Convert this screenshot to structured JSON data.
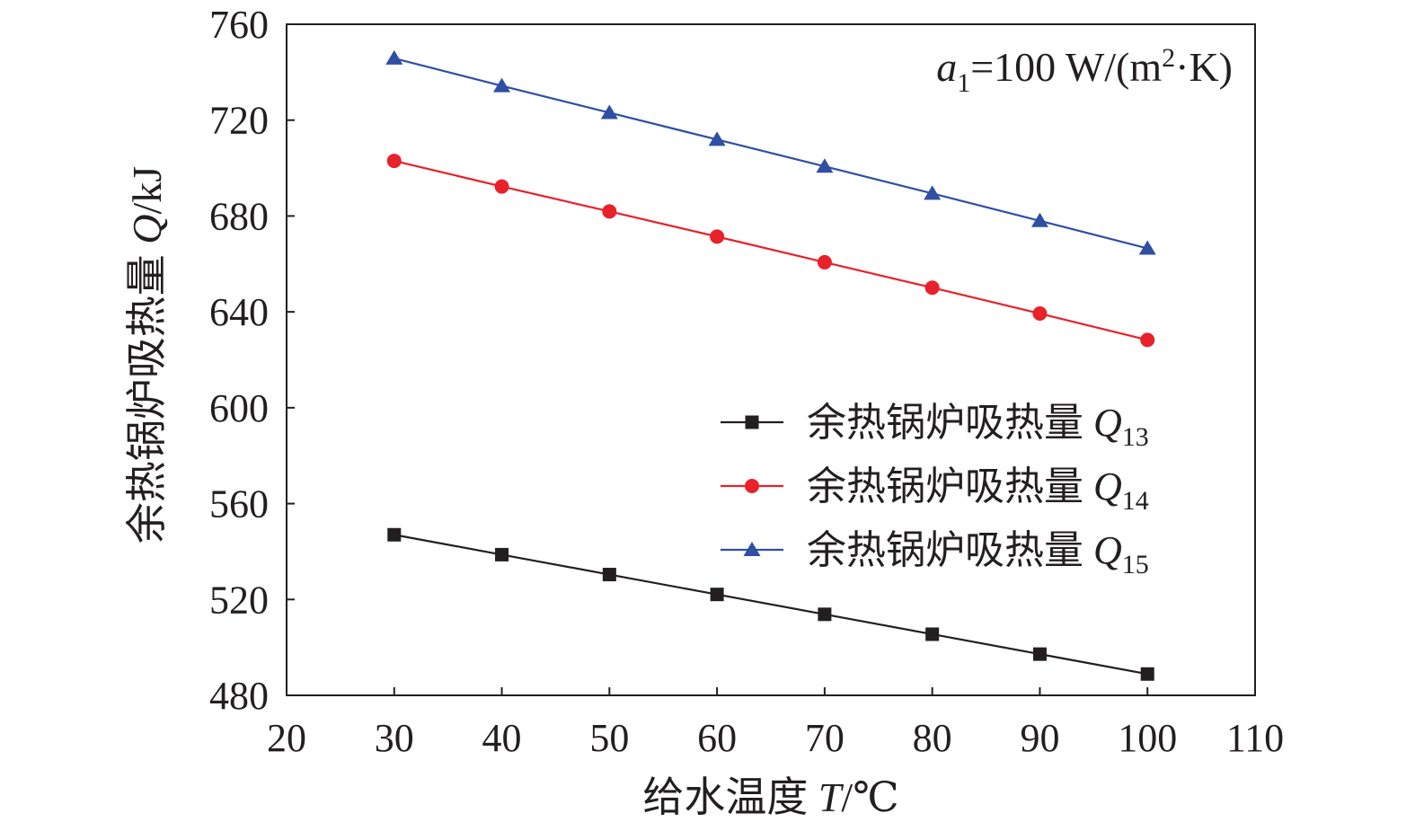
{
  "chart_data": {
    "type": "line",
    "annotation": {
      "symbol": "a",
      "subscript": "1",
      "text": "=100 W/(m",
      "superscript": "2",
      "tail": "·K)"
    },
    "xlabel": {
      "prefix": "给水温度 ",
      "symbol": "T",
      "suffix": "/℃"
    },
    "ylabel": {
      "prefix": "余热锅炉吸热量 ",
      "symbol": "Q",
      "suffix": "/kJ"
    },
    "xlim": [
      20,
      110
    ],
    "ylim": [
      480,
      760
    ],
    "xticks": [
      20,
      30,
      40,
      50,
      60,
      70,
      80,
      90,
      100,
      110
    ],
    "yticks": [
      480,
      520,
      560,
      600,
      640,
      680,
      720,
      760
    ],
    "x": [
      30,
      40,
      50,
      60,
      70,
      80,
      90,
      100
    ],
    "legend_position": "center-right",
    "grid": false,
    "series": [
      {
        "name": "余热锅炉吸热量 Q13",
        "legend_prefix": "余热锅炉吸热量 ",
        "legend_symbol": "Q",
        "legend_subscript": "13",
        "marker": "square",
        "color": "#231f20",
        "values": [
          547.0,
          538.7,
          530.4,
          522.1,
          513.8,
          505.5,
          497.2,
          488.9
        ]
      },
      {
        "name": "余热锅炉吸热量 Q14",
        "legend_prefix": "余热锅炉吸热量 ",
        "legend_symbol": "Q",
        "legend_subscript": "14",
        "marker": "circle",
        "color": "#e8212a",
        "values": [
          703.0,
          692.3,
          681.9,
          671.4,
          660.7,
          650.1,
          639.3,
          628.3
        ]
      },
      {
        "name": "余热锅炉吸热量 Q15",
        "legend_prefix": "余热锅炉吸热量 ",
        "legend_symbol": "Q",
        "legend_subscript": "15",
        "marker": "triangle",
        "color": "#2e4fa3",
        "values": [
          745.8,
          734.3,
          723.1,
          711.9,
          700.7,
          689.4,
          678.0,
          666.5
        ]
      }
    ]
  }
}
